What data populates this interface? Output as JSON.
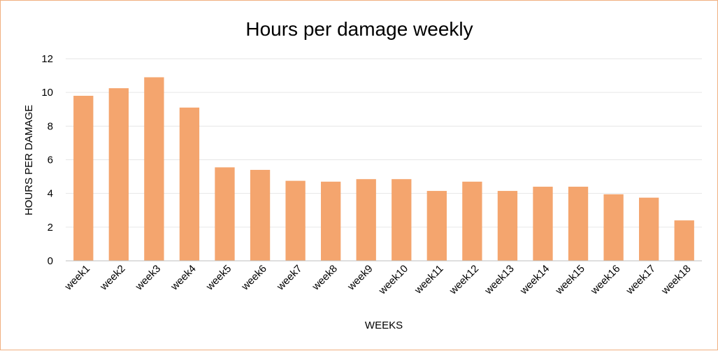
{
  "chart_data": {
    "type": "bar",
    "title": "Hours per damage weekly",
    "xlabel": "WEEKS",
    "ylabel": "HOURS PER DAMAGE",
    "categories": [
      "week1",
      "week2",
      "week3",
      "week4",
      "week5",
      "week6",
      "week7",
      "week8",
      "week9",
      "week10",
      "week11",
      "week12",
      "week13",
      "week14",
      "week15",
      "week16",
      "week17",
      "week18"
    ],
    "values": [
      9.8,
      10.25,
      10.9,
      9.1,
      5.55,
      5.4,
      4.75,
      4.7,
      4.85,
      4.85,
      4.15,
      4.7,
      4.15,
      4.4,
      4.4,
      3.95,
      3.75,
      2.4
    ],
    "ylim": [
      0,
      12
    ],
    "yticks": [
      0,
      2,
      4,
      6,
      8,
      10,
      12
    ],
    "grid": true,
    "legend": "none",
    "bar_color": "#f4a56e",
    "grid_color": "#e6e6e6",
    "axis_color": "#bfbfbf"
  }
}
